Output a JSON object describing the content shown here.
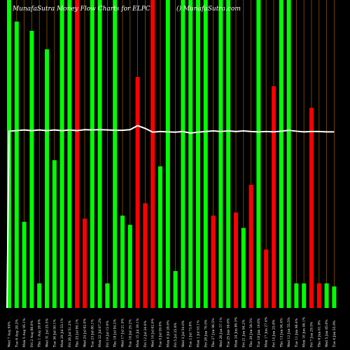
{
  "chart_data": {
    "type": "bar",
    "title": "MunafaSutra  Money Flow  Charts for ELPC",
    "watermark": "() MunafaSutra.com",
    "colors": {
      "up": "#00ff00",
      "down": "#ff0000",
      "gridline": "#ff9900",
      "line": "#ffffff",
      "background": "#000000"
    },
    "ylim": [
      0,
      100
    ],
    "categories": [
      "Wed 7 Aug 2024",
      "Tue 6 Aug 2024",
      "Mon 5 Aug 2024",
      "Fri 2 Aug 2024",
      "Thu 1 Aug 2024",
      "Wed 31 Jul 2024",
      "Tue 30 Jul 2024",
      "Mon 29 Jul 2024",
      "Fri 26 Jul 2024",
      "Thu 25 Jul 2024",
      "Wed 24 Jul 2024",
      "Tue 23 Jul 2024",
      "Mon 22 Jul 2024",
      "Fri 19 Jul 2024",
      "Thu 18 Jul 2024",
      "Wed 17 Jul 2024",
      "Tue 16 Jul 2024",
      "Mon 15 Jul 2024",
      "Fri 12 Jul 2024",
      "Wed 10 Jul 2024",
      "Tue 9 Jul 2024",
      "Mon 8 Jul 2024",
      "Fri 5 Jul 2024",
      "Wed 3 Jul 2024",
      "Tue 2 Jul 2024",
      "Mon 1 Jul 2024",
      "Fri 28 Jun 2024",
      "Thu 27 Jun 2024",
      "Wed 26 Jun 2024",
      "Tue 25 Jun 2024",
      "Mon 24 Jun 2024",
      "Fri 21 Jun 2024",
      "Thu 20 Jun 2024",
      "Tue 18 Jun 2024",
      "Mon 17 Jun 2024",
      "Fri 14 Jun 2024",
      "Thu 13 Jun 2024",
      "Wed 12 Jun 2024",
      "Tue 11 Jun 2024",
      "Mon 10 Jun 2024",
      "Fri 7 Jun 2024",
      "Thu 6 Jun 2024",
      "Wed 5 Jun 2024",
      "Tue 4 Jun 2024"
    ],
    "bar_labels": [
      "Wed 7 Aug 94%",
      "Tue 6 Aug 28.2%",
      "Mon 5 Aug 95.1%",
      "Fri 2 Aug 88.0%",
      "Thu 1 Aug 20.6%",
      "Wed 31 Jul 25.5%",
      "Tue 30 Jul 50.1%",
      "Mon 29 Jul 53.1%",
      "Fri 26 Jul 51.2%",
      "Thu 25 Jul 99.1%",
      "Wed 24 Jul 62.0%",
      "Tue 23 Jul 80.1%",
      "Mon 22 Jul 67.2%",
      "Fri 19 Jul 15.0%",
      "Thu 18 Jul 94.2%",
      "Wed 17 Jul 21.9%",
      "Tue 16 Jul 29.2%",
      "Mon 15 Jul 30.1%",
      "Fri 12 Jul 24.0%",
      "Wed 10 Jul 62.0%",
      "Tue 9 Jul 59.0%",
      "Mon 8 Jul 28.0%",
      "Fri 5 Jul 25.8%",
      "Wed 3 Jul 54.0%",
      "Tue 2 Jul 73.8%",
      "Mon 1 Jul 53.1%",
      "Fri 28 Jun 70.5%",
      "Thu 27 Jun 96.5%",
      "Wed 26 Jun 57.1%",
      "Tue 25 Jun 58.6%",
      "Mon 24 Jun 80.3%",
      "Fri 21 Jun 94.2%",
      "Thu 20 Jun 58.5%",
      "Tue 18 Jun 19.6%",
      "Mon 17 Jun 27.4%",
      "Fri 14 Jun 25.8%",
      "Thu 13 Jun 94.4%",
      "Wed 12 Jun 55.5%",
      "Tue 11 Jun 96.4%",
      "Mon 10 Jun 46.1%",
      "Fri 7 Jun 29.5%",
      "Thu 6 Jun 61.9%",
      "Wed 5 Jun 85.0%",
      "Tue 4 Jun 55.9%"
    ],
    "values": [
      100,
      93,
      28,
      90,
      8,
      84,
      48,
      100,
      100,
      100,
      29,
      100,
      100,
      8,
      100,
      30,
      27,
      75,
      34,
      100,
      46,
      100,
      12,
      100,
      100,
      100,
      100,
      30,
      100,
      100,
      31,
      26,
      40,
      100,
      19,
      72,
      100,
      100,
      8,
      8,
      65,
      8,
      8,
      7
    ],
    "directions": [
      "up",
      "up",
      "up",
      "up",
      "up",
      "up",
      "up",
      "up",
      "up",
      "down",
      "down",
      "up",
      "up",
      "up",
      "up",
      "up",
      "up",
      "down",
      "down",
      "down",
      "up",
      "up",
      "up",
      "up",
      "up",
      "up",
      "up",
      "down",
      "up",
      "up",
      "down",
      "up",
      "down",
      "up",
      "down",
      "down",
      "up",
      "up",
      "up",
      "up",
      "down",
      "down",
      "up",
      "up"
    ],
    "line": [
      57.4,
      57.6,
      57.8,
      57.6,
      57.8,
      57.6,
      57.8,
      57.6,
      57.8,
      57.6,
      57.9,
      57.8,
      57.9,
      57.8,
      57.7,
      57.7,
      57.9,
      59.2,
      58.3,
      57.1,
      57.3,
      57.2,
      57.1,
      57.3,
      56.8,
      57.1,
      57.3,
      57.5,
      57.3,
      57.5,
      57.3,
      57.5,
      57.3,
      57.2,
      57.3,
      57.2,
      57.4,
      57.7,
      57.4,
      57.2,
      57.3,
      57.3,
      57.2,
      57.2
    ],
    "grid": true
  }
}
